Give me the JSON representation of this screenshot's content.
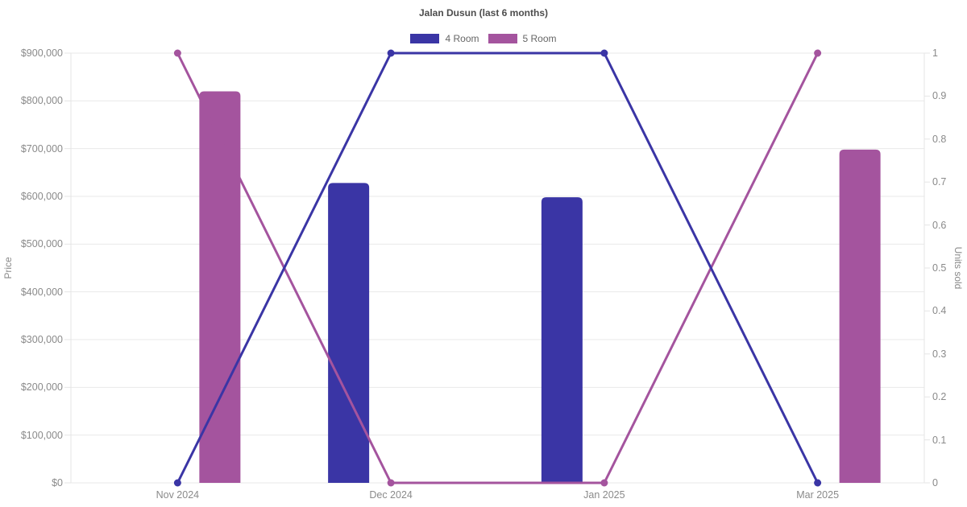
{
  "chart_data": {
    "type": "bar",
    "subtype": "combo-bar-line-dual-axis",
    "title": "Jalan Dusun (last 6 months)",
    "categories": [
      "Nov 2024",
      "Dec 2024",
      "Jan 2025",
      "Mar 2025"
    ],
    "series": [
      {
        "name": "4 Room",
        "kind": "bar",
        "axis": "left",
        "color": "#3a35a5",
        "values": [
          null,
          628000,
          598000,
          null
        ]
      },
      {
        "name": "5 Room",
        "kind": "bar",
        "axis": "left",
        "color": "#a4549e",
        "values": [
          820000,
          null,
          null,
          698000
        ]
      },
      {
        "name": "4 Room",
        "kind": "line",
        "axis": "right",
        "color": "#3a35a5",
        "values": [
          0,
          1,
          1,
          0
        ]
      },
      {
        "name": "5 Room",
        "kind": "line",
        "axis": "right",
        "color": "#a4549e",
        "values": [
          1,
          0,
          0,
          1
        ]
      }
    ],
    "y_left": {
      "label": "Price",
      "min": 0,
      "max": 900000,
      "tick_step": 100000,
      "tick_labels": [
        "$0",
        "$100,000",
        "$200,000",
        "$300,000",
        "$400,000",
        "$500,000",
        "$600,000",
        "$700,000",
        "$800,000",
        "$900,000"
      ]
    },
    "y_right": {
      "label": "Units sold",
      "min": 0,
      "max": 1,
      "tick_step": 0.1,
      "tick_labels": [
        "0",
        "0.1",
        "0.2",
        "0.3",
        "0.4",
        "0.5",
        "0.6",
        "0.7",
        "0.8",
        "0.9",
        "1"
      ]
    },
    "grid": true,
    "legend_position": "top",
    "colors": {
      "background": "#ffffff",
      "grid": "#e9e9e9",
      "axis_border": "#e5e5e5",
      "tick_text": "#8a8a8a",
      "title_text": "#4d4d4d",
      "legend_text": "#666666",
      "axis_title_text": "#8a8a8a"
    }
  }
}
